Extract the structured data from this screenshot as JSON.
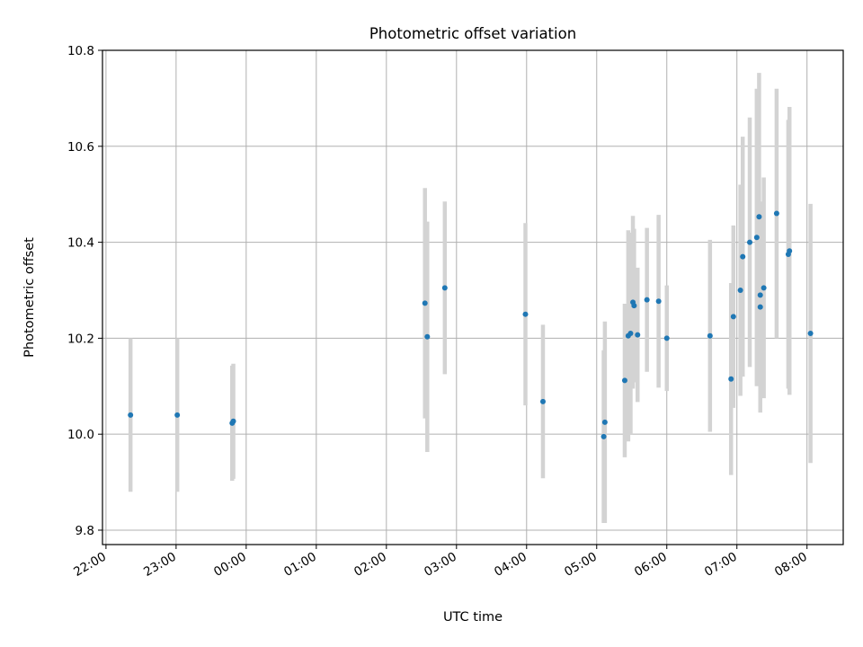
{
  "chart_data": {
    "type": "scatter",
    "title": "Photometric offset variation",
    "xlabel": "UTC time",
    "ylabel": "Photometric offset",
    "grid": true,
    "colors": {
      "point": "#1f77b4",
      "errorbar": "#d3d3d3",
      "grid": "#b0b0b0",
      "axis": "#000000"
    },
    "x_ticks": [
      "22:00",
      "23:00",
      "00:00",
      "01:00",
      "02:00",
      "03:00",
      "04:00",
      "05:00",
      "06:00",
      "07:00",
      "08:00"
    ],
    "y_ticks": [
      "9.8",
      "10.0",
      "10.2",
      "10.4",
      "10.6",
      "10.8"
    ],
    "xlim": [
      "21:57",
      "08:31"
    ],
    "ylim": [
      9.77,
      10.8
    ],
    "points": [
      {
        "x": "22:21",
        "y": 10.04,
        "err": 0.16
      },
      {
        "x": "23:01",
        "y": 10.04,
        "err": 0.16
      },
      {
        "x": "23:48",
        "y": 10.023,
        "err": 0.12
      },
      {
        "x": "23:49",
        "y": 10.027,
        "err": 0.12
      },
      {
        "x": "02:33",
        "y": 10.273,
        "err": 0.24
      },
      {
        "x": "02:35",
        "y": 10.203,
        "err": 0.24
      },
      {
        "x": "02:50",
        "y": 10.305,
        "err": 0.18
      },
      {
        "x": "03:59",
        "y": 10.25,
        "err": 0.19
      },
      {
        "x": "04:14",
        "y": 10.068,
        "err": 0.16
      },
      {
        "x": "05:06",
        "y": 9.995,
        "err": 0.18
      },
      {
        "x": "05:07",
        "y": 10.025,
        "err": 0.21
      },
      {
        "x": "05:24",
        "y": 10.112,
        "err": 0.16
      },
      {
        "x": "05:27",
        "y": 10.205,
        "err": 0.22
      },
      {
        "x": "05:29",
        "y": 10.21,
        "err": 0.21
      },
      {
        "x": "05:31",
        "y": 10.275,
        "err": 0.18
      },
      {
        "x": "05:32",
        "y": 10.268,
        "err": 0.16
      },
      {
        "x": "05:35",
        "y": 10.207,
        "err": 0.14
      },
      {
        "x": "05:43",
        "y": 10.28,
        "err": 0.15
      },
      {
        "x": "05:53",
        "y": 10.277,
        "err": 0.18
      },
      {
        "x": "06:00",
        "y": 10.2,
        "err": 0.11
      },
      {
        "x": "06:37",
        "y": 10.205,
        "err": 0.2
      },
      {
        "x": "06:55",
        "y": 10.115,
        "err": 0.2
      },
      {
        "x": "06:57",
        "y": 10.245,
        "err": 0.19
      },
      {
        "x": "07:03",
        "y": 10.3,
        "err": 0.22
      },
      {
        "x": "07:05",
        "y": 10.37,
        "err": 0.25
      },
      {
        "x": "07:11",
        "y": 10.4,
        "err": 0.26
      },
      {
        "x": "07:17",
        "y": 10.41,
        "err": 0.31
      },
      {
        "x": "07:19",
        "y": 10.453,
        "err": 0.3
      },
      {
        "x": "07:20",
        "y": 10.29,
        "err": 0.19
      },
      {
        "x": "07:20",
        "y": 10.265,
        "err": 0.22
      },
      {
        "x": "07:23",
        "y": 10.305,
        "err": 0.23
      },
      {
        "x": "07:34",
        "y": 10.46,
        "err": 0.26
      },
      {
        "x": "07:44",
        "y": 10.375,
        "err": 0.28
      },
      {
        "x": "07:45",
        "y": 10.382,
        "err": 0.3
      },
      {
        "x": "08:03",
        "y": 10.21,
        "err": 0.27
      }
    ]
  }
}
